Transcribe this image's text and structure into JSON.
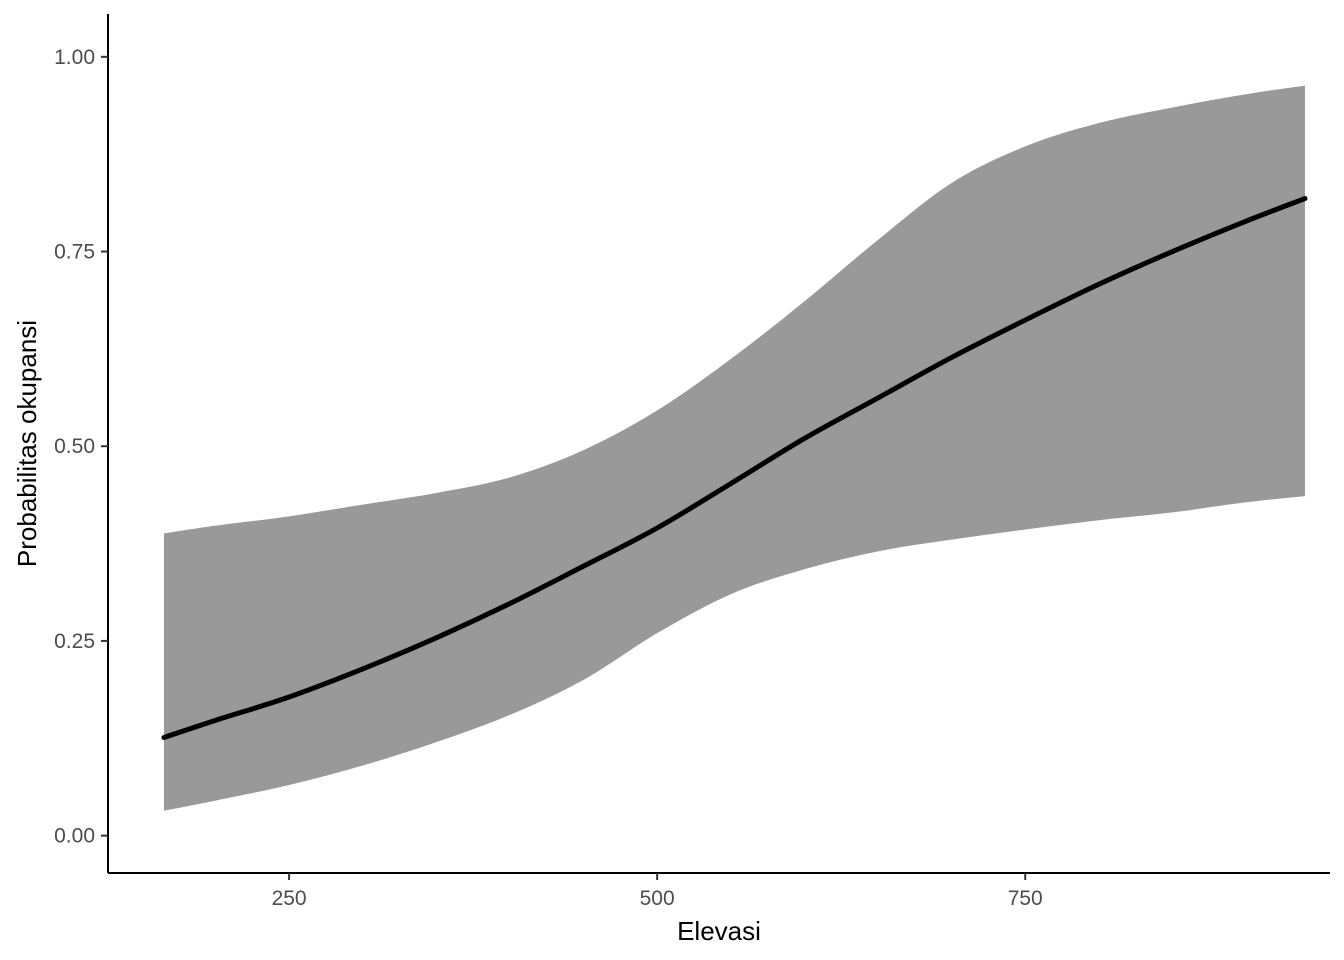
{
  "chart_data": {
    "type": "line",
    "title": "",
    "xlabel": "Elevasi",
    "ylabel": "Probabilitas okupansi",
    "xlim": [
      127,
      957
    ],
    "ylim": [
      -0.048,
      1.055
    ],
    "x_ticks": [
      250,
      500,
      750
    ],
    "x_tick_labels": [
      "250",
      "500",
      "750"
    ],
    "y_ticks": [
      0.0,
      0.25,
      0.5,
      0.75,
      1.0
    ],
    "y_tick_labels": [
      "0.00",
      "0.25",
      "0.50",
      "0.75",
      "1.00"
    ],
    "grid": false,
    "legend": "none",
    "colors": {
      "line": "#000000",
      "ribbon": "#999999"
    },
    "series": [
      {
        "kind": "line",
        "x": [
          165,
          200,
          250,
          300,
          350,
          400,
          450,
          500,
          550,
          600,
          650,
          700,
          750,
          800,
          850,
          900,
          940
        ],
        "y": [
          0.126,
          0.148,
          0.178,
          0.214,
          0.254,
          0.298,
          0.346,
          0.395,
          0.452,
          0.51,
          0.562,
          0.614,
          0.662,
          0.708,
          0.75,
          0.789,
          0.818
        ]
      },
      {
        "kind": "ribbon",
        "x": [
          165,
          200,
          250,
          300,
          350,
          400,
          450,
          500,
          550,
          600,
          650,
          700,
          750,
          800,
          850,
          900,
          940
        ],
        "lower": [
          0.032,
          0.045,
          0.065,
          0.09,
          0.12,
          0.155,
          0.2,
          0.26,
          0.31,
          0.342,
          0.365,
          0.38,
          0.393,
          0.405,
          0.415,
          0.428,
          0.436
        ],
        "upper": [
          0.388,
          0.398,
          0.41,
          0.425,
          0.44,
          0.46,
          0.495,
          0.546,
          0.612,
          0.686,
          0.765,
          0.838,
          0.885,
          0.915,
          0.935,
          0.952,
          0.963
        ]
      }
    ]
  }
}
